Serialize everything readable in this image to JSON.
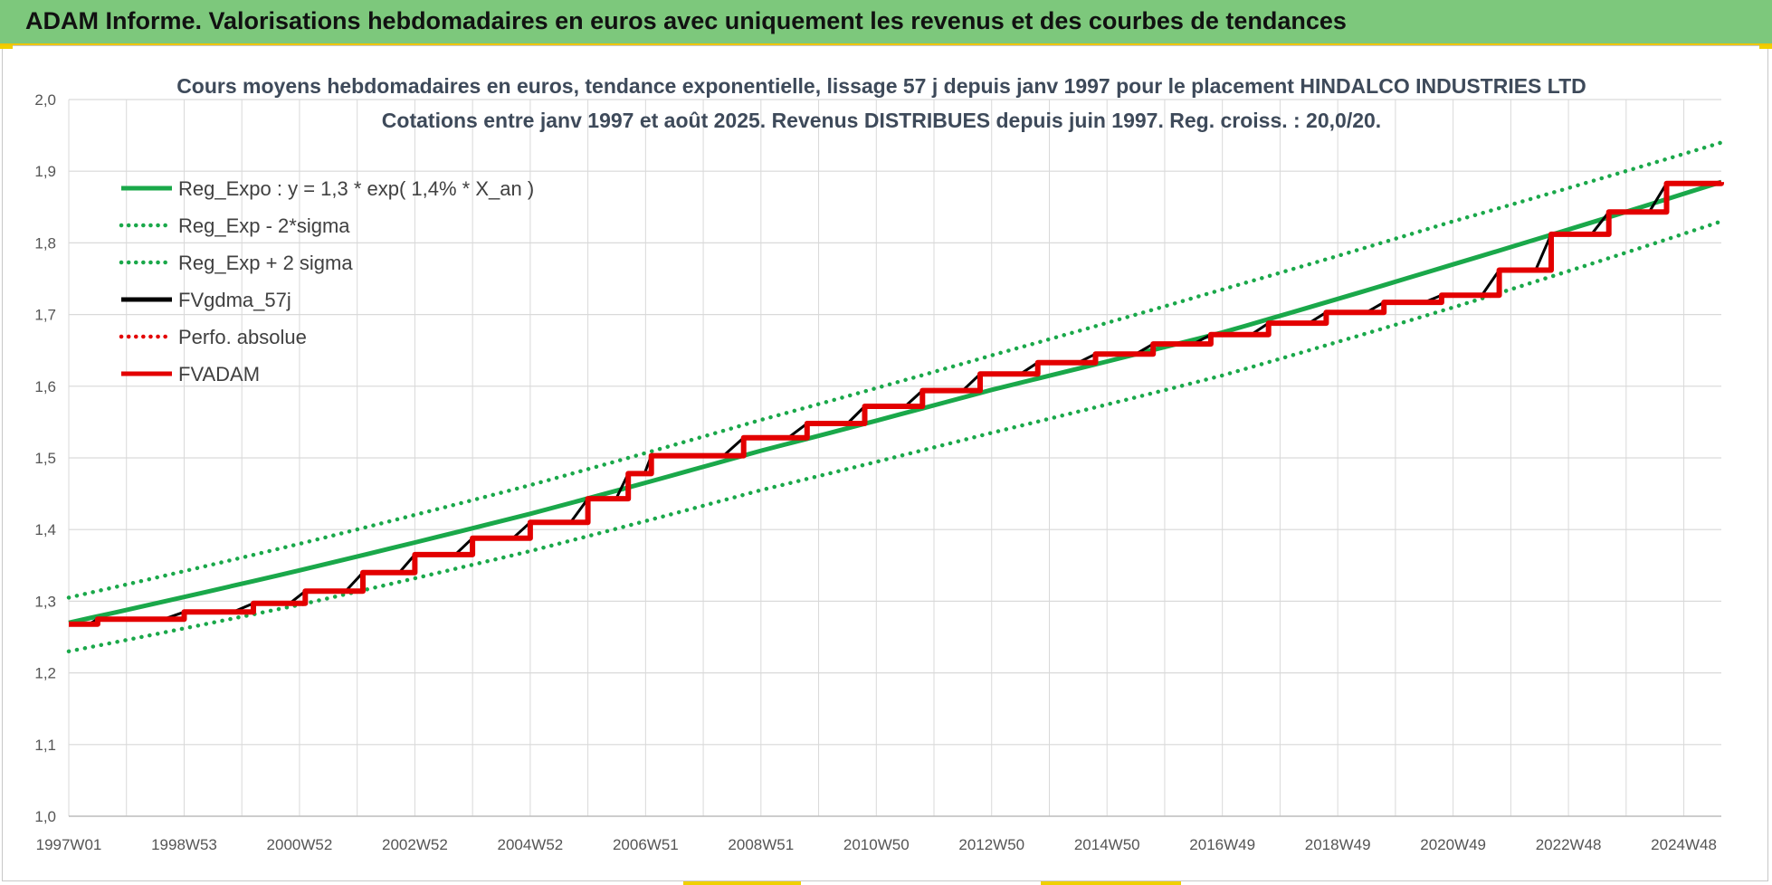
{
  "banner": {
    "title": "ADAM Informe. Valorisations hebdomadaires en euros avec uniquement les revenus et des courbes de tendances"
  },
  "colors": {
    "banner": "#7dc87c",
    "accent": "#f0c400",
    "green": "#1aa84a",
    "red": "#e30000",
    "black": "#000000",
    "grid": "#d9d9d9"
  },
  "chart_data": {
    "type": "line",
    "title": [
      "Cours moyens hebdomadaires en euros, tendance exponentielle, lissage 57 j depuis janv 1997 pour le placement HINDALCO INDUSTRIES LTD",
      "Cotations entre janv 1997 et août 2025.  Revenus DISTRIBUES depuis juin 1997.  Reg. croiss. : 20,0/20."
    ],
    "xlabel": "",
    "ylabel": "",
    "x_range": [
      1997.0,
      2025.65
    ],
    "x_ticks": [
      {
        "label": "1997W01",
        "x": 1997.0
      },
      {
        "label": "1998W53",
        "x": 1999.0
      },
      {
        "label": "2000W52",
        "x": 2001.0
      },
      {
        "label": "2002W52",
        "x": 2003.0
      },
      {
        "label": "2004W52",
        "x": 2005.0
      },
      {
        "label": "2006W51",
        "x": 2007.0
      },
      {
        "label": "2008W51",
        "x": 2009.0
      },
      {
        "label": "2010W50",
        "x": 2011.0
      },
      {
        "label": "2012W50",
        "x": 2013.0
      },
      {
        "label": "2014W50",
        "x": 2015.0
      },
      {
        "label": "2016W49",
        "x": 2017.0
      },
      {
        "label": "2018W49",
        "x": 2019.0
      },
      {
        "label": "2020W49",
        "x": 2021.0
      },
      {
        "label": "2022W48",
        "x": 2023.0
      },
      {
        "label": "2024W48",
        "x": 2025.0
      }
    ],
    "ylim": [
      1.0,
      2.0
    ],
    "y_ticks": [
      "1,0",
      "1,1",
      "1,2",
      "1,3",
      "1,4",
      "1,5",
      "1,6",
      "1,7",
      "1,8",
      "1,9",
      "2,0"
    ],
    "grid": true,
    "legend_position": "top-left",
    "series": [
      {
        "name": "Reg_Expo : y = 1,3 * exp( 1,4% *  X_an )",
        "color": "#1aa84a",
        "style": "solid",
        "x": [
          1997.0,
          2001.0,
          2005.0,
          2009.0,
          2013.0,
          2017.0,
          2021.0,
          2025.65
        ],
        "y": [
          1.27,
          1.343,
          1.422,
          1.51,
          1.595,
          1.675,
          1.77,
          1.885
        ]
      },
      {
        "name": "Reg_Exp - 2*sigma",
        "color": "#1aa84a",
        "style": "dotted",
        "x": [
          1997.0,
          2001.0,
          2005.0,
          2009.0,
          2013.0,
          2017.0,
          2021.0,
          2025.65
        ],
        "y": [
          1.23,
          1.295,
          1.37,
          1.455,
          1.535,
          1.615,
          1.71,
          1.83
        ]
      },
      {
        "name": "Reg_Exp + 2 sigma",
        "color": "#1aa84a",
        "style": "dotted",
        "x": [
          1997.0,
          2001.0,
          2005.0,
          2009.0,
          2013.0,
          2017.0,
          2021.0,
          2025.65
        ],
        "y": [
          1.305,
          1.38,
          1.462,
          1.553,
          1.643,
          1.735,
          1.83,
          1.94
        ]
      },
      {
        "name": "FVgdma_57j",
        "color": "#000000",
        "style": "solid",
        "smoothed_step": true,
        "x": [
          1997.0,
          1997.5,
          1999.0,
          2000.2,
          2001.1,
          2002.1,
          2003.0,
          2004.0,
          2005.0,
          2006.0,
          2006.7,
          2007.1,
          2008.7,
          2009.8,
          2010.8,
          2011.8,
          2012.8,
          2013.8,
          2014.8,
          2015.8,
          2016.8,
          2017.8,
          2018.8,
          2019.8,
          2020.8,
          2021.8,
          2022.7,
          2023.7,
          2024.7,
          2025.65
        ],
        "y": [
          1.268,
          1.275,
          1.285,
          1.297,
          1.314,
          1.34,
          1.365,
          1.388,
          1.41,
          1.443,
          1.478,
          1.503,
          1.528,
          1.548,
          1.572,
          1.594,
          1.617,
          1.633,
          1.645,
          1.659,
          1.672,
          1.688,
          1.703,
          1.717,
          1.727,
          1.762,
          1.812,
          1.843,
          1.883,
          1.885
        ]
      },
      {
        "name": "Perfo. absolue",
        "color": "#e30000",
        "style": "dotted",
        "x": [],
        "y": []
      },
      {
        "name": "FVADAM",
        "color": "#e30000",
        "style": "solid",
        "step": true,
        "x": [
          1997.0,
          1997.5,
          1999.0,
          2000.2,
          2001.1,
          2002.1,
          2003.0,
          2004.0,
          2005.0,
          2006.0,
          2006.7,
          2007.1,
          2008.7,
          2009.8,
          2010.8,
          2011.8,
          2012.8,
          2013.8,
          2014.8,
          2015.8,
          2016.8,
          2017.8,
          2018.8,
          2019.8,
          2020.8,
          2021.8,
          2022.7,
          2023.7,
          2024.7,
          2025.65
        ],
        "y": [
          1.268,
          1.275,
          1.285,
          1.297,
          1.314,
          1.34,
          1.365,
          1.388,
          1.41,
          1.443,
          1.478,
          1.503,
          1.528,
          1.548,
          1.572,
          1.594,
          1.617,
          1.633,
          1.645,
          1.659,
          1.672,
          1.688,
          1.703,
          1.717,
          1.727,
          1.762,
          1.812,
          1.843,
          1.883,
          1.885
        ]
      }
    ]
  }
}
